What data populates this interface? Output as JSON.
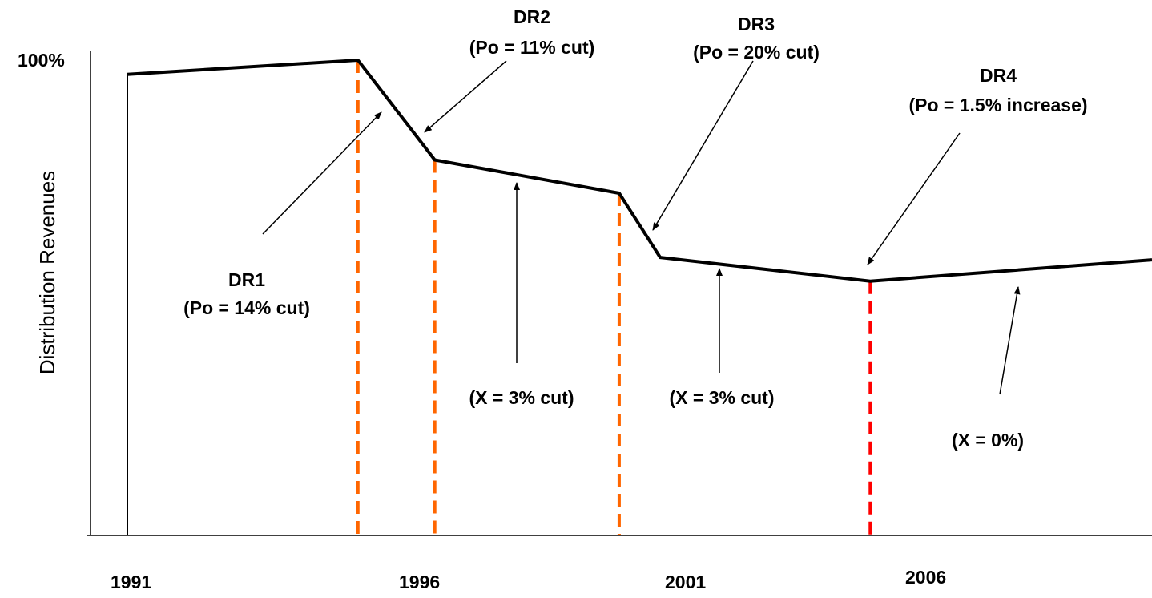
{
  "chart_data": {
    "type": "line",
    "title": "",
    "xlabel": "",
    "ylabel": "Distribution Revenues",
    "x_ticks": [
      "1991",
      "1996",
      "2001",
      "2006"
    ],
    "y_ticks": [
      "100%"
    ],
    "xlim": [
      1991,
      2011
    ],
    "ylim": [
      0,
      100
    ],
    "series": [
      {
        "points": [
          {
            "x": 1991,
            "y": 0
          },
          {
            "x": 1991,
            "y": 97
          },
          {
            "x": 1995.5,
            "y": 100
          },
          {
            "x": 1997.0,
            "y": 79
          },
          {
            "x": 2000.6,
            "y": 72
          },
          {
            "x": 2001.4,
            "y": 58.5
          },
          {
            "x": 2005.5,
            "y": 53.5
          },
          {
            "x": 2011,
            "y": 58
          }
        ],
        "color": "#000000"
      }
    ],
    "reference_lines": [
      {
        "x": 1995.5,
        "color": "#ff6600",
        "style": "dashed"
      },
      {
        "x": 1997.0,
        "color": "#ff6600",
        "style": "dashed"
      },
      {
        "x": 2000.6,
        "color": "#ff6600",
        "style": "dashed"
      },
      {
        "x": 2005.5,
        "color": "#ff0000",
        "style": "dashed"
      }
    ],
    "annotations": [
      {
        "lines": [
          "DR1",
          "(Po = 14% cut)"
        ]
      },
      {
        "lines": [
          "DR2",
          "(Po = 11% cut)"
        ]
      },
      {
        "lines": [
          "DR3",
          "(Po = 20% cut)"
        ]
      },
      {
        "lines": [
          "DR4",
          "(Po = 1.5% increase)"
        ]
      },
      {
        "lines": [
          "(X = 3% cut)"
        ]
      },
      {
        "lines": [
          "(X = 3% cut)"
        ]
      },
      {
        "lines": [
          "(X = 0%)"
        ]
      }
    ]
  }
}
